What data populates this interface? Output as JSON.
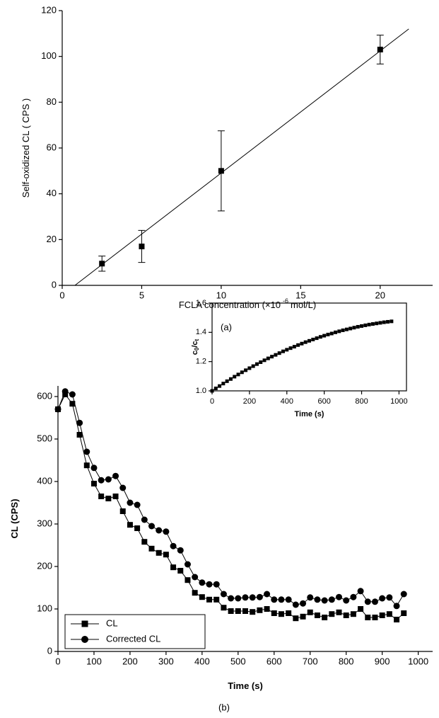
{
  "chart_data": [
    {
      "type": "scatter",
      "caption": "(a)",
      "x_label": "FCLA concentration (×10",
      "x_label_exponent": "-6",
      "x_label_unit": "mol/L)",
      "y_label": "Self-oxidized CL ( CPS )",
      "x": [
        2.5,
        5,
        10,
        20
      ],
      "values": [
        9.5,
        17,
        50,
        103
      ],
      "errors": [
        3.3,
        7,
        17.5,
        6.3
      ],
      "fit_line": {
        "x": [
          0.8,
          21.8
        ],
        "values": [
          0,
          112
        ]
      },
      "xlim": [
        0,
        23.3
      ],
      "ylim": [
        0,
        120
      ],
      "xticks": [
        0,
        5,
        10,
        15,
        20
      ],
      "yticks": [
        0,
        20,
        40,
        60,
        80,
        100,
        120
      ],
      "color": "#000000"
    },
    {
      "type": "line",
      "caption": "(b)",
      "x_label": "Time (s)",
      "y_label": "CL (CPS)",
      "x": [
        0,
        20,
        40,
        60,
        80,
        100,
        120,
        140,
        160,
        180,
        200,
        220,
        240,
        260,
        280,
        300,
        320,
        340,
        360,
        380,
        400,
        420,
        440,
        460,
        480,
        500,
        520,
        540,
        560,
        580,
        600,
        620,
        640,
        660,
        680,
        700,
        720,
        740,
        760,
        780,
        800,
        820,
        840,
        860,
        880,
        900,
        920,
        940,
        960
      ],
      "series": [
        {
          "name": "CL",
          "marker": "square",
          "color": "#000000",
          "values": [
            570,
            605,
            583,
            510,
            438,
            395,
            365,
            360,
            365,
            330,
            298,
            290,
            258,
            242,
            232,
            228,
            198,
            190,
            168,
            138,
            128,
            122,
            122,
            103,
            95,
            95,
            95,
            93,
            97,
            100,
            90,
            88,
            90,
            78,
            82,
            92,
            85,
            80,
            88,
            92,
            85,
            88,
            100,
            80,
            80,
            85,
            88,
            75,
            90
          ]
        },
        {
          "name": "Corrected CL",
          "marker": "circle",
          "color": "#000000",
          "values": [
            570,
            612,
            605,
            538,
            470,
            432,
            403,
            405,
            413,
            385,
            350,
            345,
            310,
            295,
            285,
            282,
            248,
            238,
            205,
            175,
            162,
            158,
            158,
            135,
            125,
            125,
            127,
            127,
            128,
            135,
            122,
            122,
            122,
            110,
            113,
            127,
            122,
            120,
            122,
            128,
            120,
            128,
            142,
            117,
            117,
            125,
            127,
            107,
            135
          ]
        }
      ],
      "xlim": [
        0,
        1040
      ],
      "ylim": [
        0,
        625
      ],
      "xticks": [
        0,
        100,
        200,
        300,
        400,
        500,
        600,
        700,
        800,
        900,
        1000
      ],
      "yticks": [
        0,
        100,
        200,
        300,
        400,
        500,
        600
      ],
      "legend": "lower-left"
    },
    {
      "type": "line",
      "x_label": "Time (s)",
      "y_label_parts": [
        "c",
        "0",
        "/c",
        "t"
      ],
      "x": [
        0,
        20,
        40,
        60,
        80,
        100,
        120,
        140,
        160,
        180,
        200,
        220,
        240,
        260,
        280,
        300,
        320,
        340,
        360,
        380,
        400,
        420,
        440,
        460,
        480,
        500,
        520,
        540,
        560,
        580,
        600,
        620,
        640,
        660,
        680,
        700,
        720,
        740,
        760,
        780,
        800,
        820,
        840,
        860,
        880,
        900,
        920,
        940,
        960
      ],
      "series": [
        {
          "marker": "square",
          "color": "#000000",
          "values": [
            1.0,
            1.017,
            1.033,
            1.05,
            1.066,
            1.081,
            1.097,
            1.112,
            1.127,
            1.141,
            1.155,
            1.169,
            1.183,
            1.196,
            1.209,
            1.222,
            1.234,
            1.246,
            1.258,
            1.27,
            1.281,
            1.292,
            1.302,
            1.313,
            1.323,
            1.333,
            1.342,
            1.351,
            1.36,
            1.369,
            1.377,
            1.385,
            1.392,
            1.4,
            1.407,
            1.414,
            1.42,
            1.426,
            1.432,
            1.438,
            1.443,
            1.448,
            1.453,
            1.457,
            1.461,
            1.465,
            1.469,
            1.472,
            1.475
          ]
        }
      ],
      "xlim": [
        0,
        1040
      ],
      "ylim": [
        1.0,
        1.6
      ],
      "xticks": [
        0,
        200,
        400,
        600,
        800,
        1000
      ],
      "yticks": [
        {
          "value": 1.0,
          "label": "1.0"
        },
        1.2,
        1.4,
        1.6
      ]
    }
  ]
}
